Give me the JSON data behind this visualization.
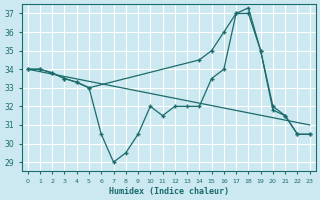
{
  "xlabel": "Humidex (Indice chaleur)",
  "background_color": "#cce8f0",
  "grid_color": "#ffffff",
  "line_color": "#1a6b6b",
  "xlim": [
    -0.5,
    23.5
  ],
  "ylim": [
    28.5,
    37.5
  ],
  "yticks": [
    29,
    30,
    31,
    32,
    33,
    34,
    35,
    36,
    37
  ],
  "xticks": [
    0,
    1,
    2,
    3,
    4,
    5,
    6,
    7,
    8,
    9,
    10,
    11,
    12,
    13,
    14,
    15,
    16,
    17,
    18,
    19,
    20,
    21,
    22,
    23
  ],
  "series": [
    {
      "x": [
        0,
        1,
        2,
        3,
        4,
        5,
        6,
        7,
        8,
        9,
        10,
        11,
        12,
        13,
        14,
        15,
        16,
        17,
        18,
        19,
        20,
        21,
        22,
        23
      ],
      "y": [
        34,
        34,
        33.8,
        33.5,
        33.3,
        33.0,
        30.5,
        29.0,
        29.5,
        30.5,
        32.0,
        31.5,
        32.0,
        32.0,
        32.0,
        33.5,
        34.0,
        37.0,
        37.0,
        35.0,
        32.0,
        31.5,
        30.5,
        30.5
      ],
      "has_markers": true
    },
    {
      "x": [
        0,
        1,
        2,
        3,
        4,
        5,
        14,
        15,
        16,
        17,
        18,
        19,
        20,
        21,
        22,
        23
      ],
      "y": [
        34,
        34,
        33.8,
        33.5,
        33.3,
        33.0,
        34.5,
        35.0,
        36.0,
        37.0,
        37.3,
        35.0,
        31.8,
        31.5,
        30.5,
        30.5
      ],
      "has_markers": true
    },
    {
      "x": [
        0,
        23
      ],
      "y": [
        34,
        31.0
      ],
      "has_markers": false
    }
  ]
}
